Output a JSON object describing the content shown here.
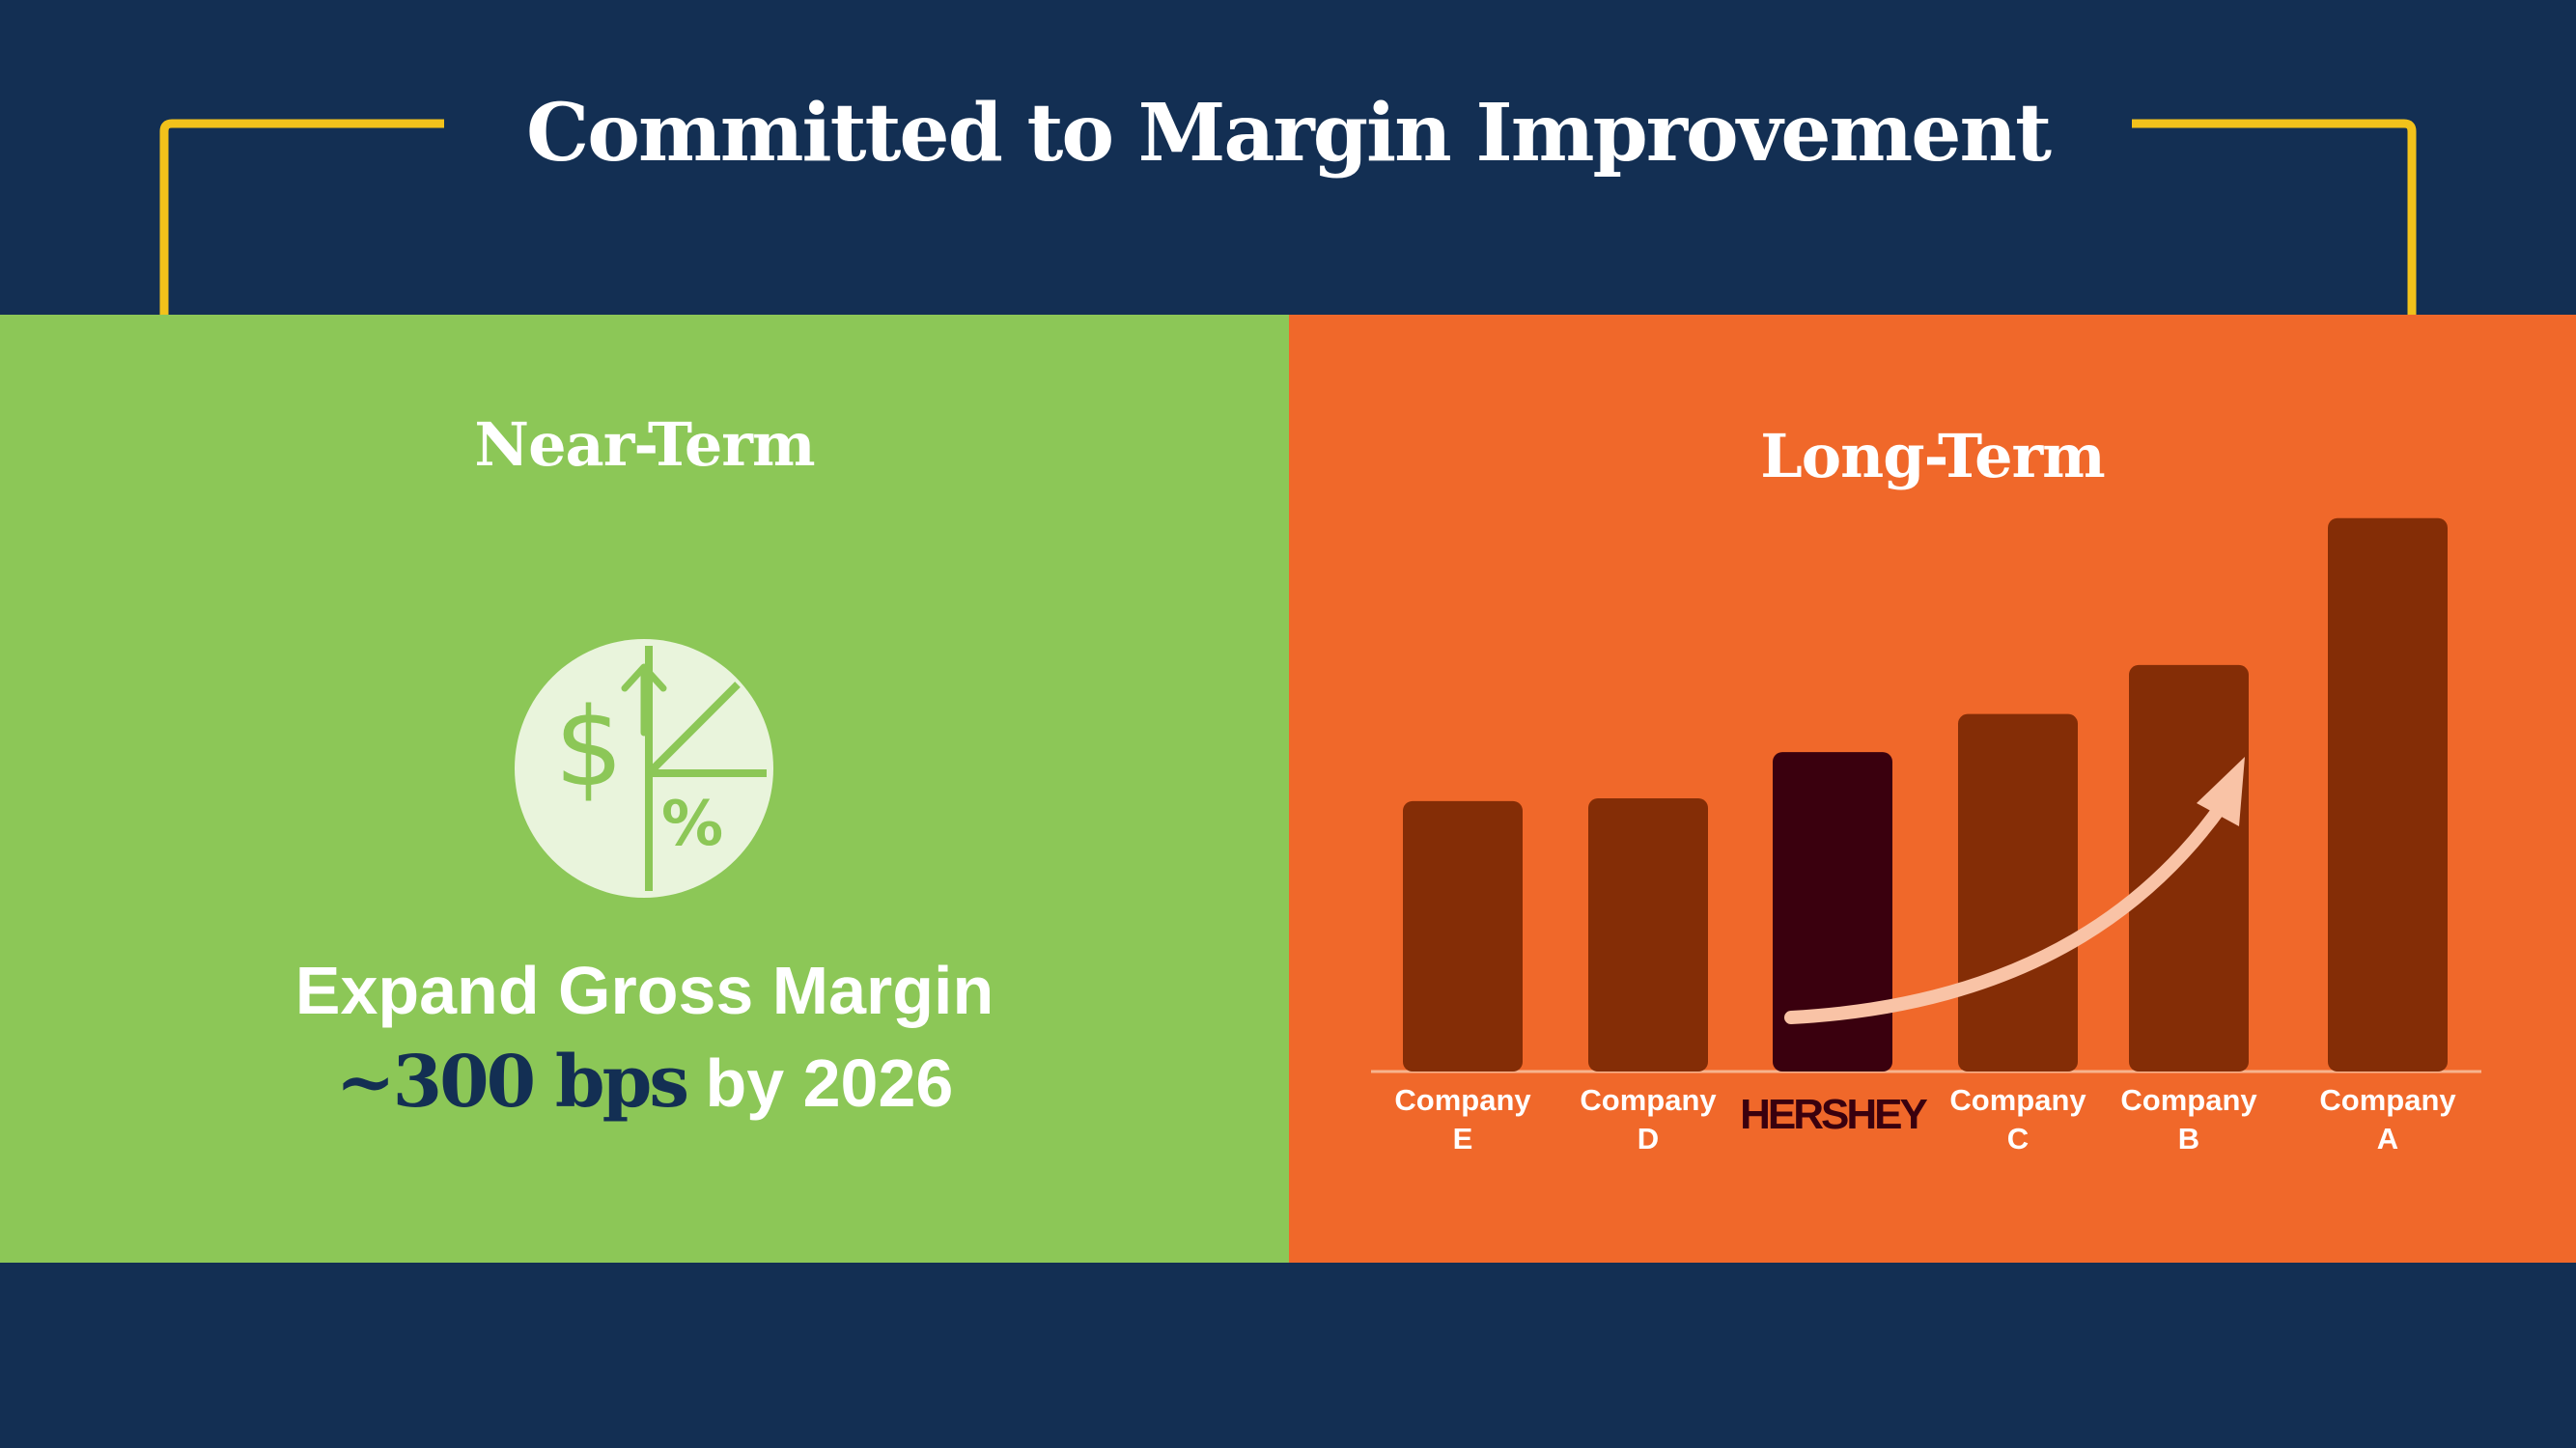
{
  "title": "Committed to Margin Improvement",
  "near_term": {
    "heading": "Near-Term",
    "icon": "margin-pie-icon",
    "text_line1": "Expand Gross Margin",
    "highlight": "~300 bps",
    "text_line2_suffix": " by 2026"
  },
  "long_term": {
    "heading": "Long-Term"
  },
  "colors": {
    "background": "#132f53",
    "bracket": "#f2c21b",
    "near_panel": "#8cc757",
    "long_panel": "#f0682a",
    "bar": "#842d06",
    "highlight_bar": "#3a000e",
    "arrow": "#f9c3a6"
  },
  "chart_data": {
    "type": "bar",
    "categories": [
      [
        "Company",
        "E"
      ],
      [
        "Company",
        "D"
      ],
      [
        "HERSHEY"
      ],
      [
        "Company",
        "C"
      ],
      [
        "Company",
        "B"
      ],
      [
        "Company",
        "A"
      ]
    ],
    "values": [
      49,
      49.5,
      58,
      65,
      74,
      101
    ],
    "highlight_index": 2,
    "annotation": "upward-trend-arrow",
    "title": "",
    "xlabel": "",
    "ylabel": "",
    "ylim": [
      0,
      110
    ],
    "grid": false,
    "axis_values_shown": false
  }
}
